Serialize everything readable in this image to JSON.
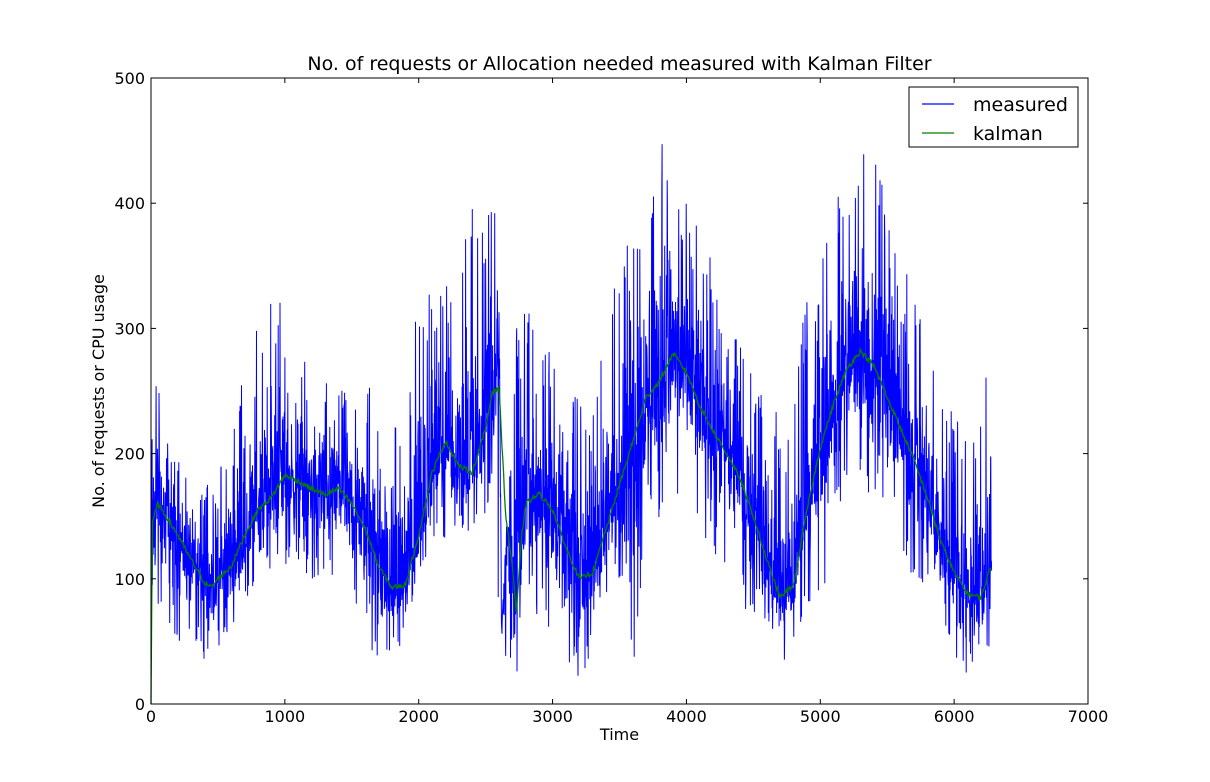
{
  "chart_data": {
    "type": "line",
    "title": "No. of requests or Allocation needed measured with Kalman Filter",
    "xlabel": "Time",
    "ylabel": "No. of requests or CPU usage",
    "xlim": [
      0,
      7000
    ],
    "ylim": [
      0,
      500
    ],
    "xticks": [
      0,
      1000,
      2000,
      3000,
      4000,
      5000,
      6000,
      7000
    ],
    "yticks": [
      0,
      100,
      200,
      300,
      400,
      500
    ],
    "grid": false,
    "legend_position": "top-right",
    "x_max_data": 6280,
    "series": [
      {
        "name": "measured",
        "color": "#0000ff",
        "description": "noisy measured signal, sampled each time step; envelope (x, low, high)",
        "envelope": [
          [
            0,
            90,
            300
          ],
          [
            100,
            60,
            230
          ],
          [
            200,
            50,
            200
          ],
          [
            300,
            45,
            180
          ],
          [
            400,
            30,
            170
          ],
          [
            500,
            45,
            200
          ],
          [
            600,
            60,
            230
          ],
          [
            700,
            80,
            290
          ],
          [
            800,
            95,
            300
          ],
          [
            900,
            110,
            350
          ],
          [
            1000,
            110,
            310
          ],
          [
            1100,
            100,
            280
          ],
          [
            1200,
            100,
            270
          ],
          [
            1300,
            100,
            290
          ],
          [
            1400,
            90,
            260
          ],
          [
            1500,
            80,
            250
          ],
          [
            1600,
            50,
            250
          ],
          [
            1700,
            30,
            260
          ],
          [
            1800,
            35,
            230
          ],
          [
            1900,
            50,
            240
          ],
          [
            2000,
            100,
            360
          ],
          [
            2100,
            130,
            320
          ],
          [
            2200,
            130,
            340
          ],
          [
            2300,
            130,
            370
          ],
          [
            2400,
            140,
            400
          ],
          [
            2500,
            150,
            400
          ],
          [
            2560,
            160,
            410
          ],
          [
            2600,
            0,
            330
          ],
          [
            2620,
            40,
            60
          ],
          [
            2730,
            0,
            310
          ],
          [
            2800,
            80,
            320
          ],
          [
            2900,
            70,
            300
          ],
          [
            3000,
            50,
            280
          ],
          [
            3100,
            30,
            260
          ],
          [
            3200,
            20,
            250
          ],
          [
            3300,
            40,
            280
          ],
          [
            3400,
            70,
            320
          ],
          [
            3500,
            100,
            350
          ],
          [
            3600,
            0,
            390
          ],
          [
            3700,
            150,
            420
          ],
          [
            3800,
            140,
            450
          ],
          [
            3900,
            160,
            440
          ],
          [
            4000,
            150,
            400
          ],
          [
            4100,
            140,
            380
          ],
          [
            4200,
            120,
            350
          ],
          [
            4300,
            100,
            310
          ],
          [
            4400,
            80,
            290
          ],
          [
            4500,
            60,
            270
          ],
          [
            4600,
            30,
            250
          ],
          [
            4700,
            15,
            230
          ],
          [
            4800,
            45,
            250
          ],
          [
            4900,
            80,
            330
          ],
          [
            5000,
            70,
            370
          ],
          [
            5100,
            140,
            400
          ],
          [
            5200,
            160,
            430
          ],
          [
            5300,
            160,
            450
          ],
          [
            5400,
            150,
            440
          ],
          [
            5500,
            130,
            400
          ],
          [
            5600,
            120,
            360
          ],
          [
            5700,
            100,
            330
          ],
          [
            5800,
            80,
            300
          ],
          [
            5900,
            50,
            260
          ],
          [
            6000,
            40,
            230
          ],
          [
            6100,
            20,
            220
          ],
          [
            6200,
            40,
            230
          ],
          [
            6280,
            0,
            300
          ]
        ]
      },
      {
        "name": "kalman",
        "color": "#008000",
        "points": [
          [
            0,
            0
          ],
          [
            10,
            145
          ],
          [
            50,
            160
          ],
          [
            100,
            152
          ],
          [
            200,
            135
          ],
          [
            300,
            115
          ],
          [
            400,
            97
          ],
          [
            450,
            93
          ],
          [
            500,
            100
          ],
          [
            600,
            110
          ],
          [
            700,
            135
          ],
          [
            800,
            155
          ],
          [
            900,
            165
          ],
          [
            1000,
            183
          ],
          [
            1100,
            178
          ],
          [
            1200,
            172
          ],
          [
            1300,
            167
          ],
          [
            1400,
            172
          ],
          [
            1500,
            160
          ],
          [
            1600,
            140
          ],
          [
            1700,
            110
          ],
          [
            1800,
            93
          ],
          [
            1900,
            95
          ],
          [
            2000,
            135
          ],
          [
            2100,
            185
          ],
          [
            2200,
            210
          ],
          [
            2300,
            190
          ],
          [
            2400,
            185
          ],
          [
            2500,
            220
          ],
          [
            2550,
            250
          ],
          [
            2600,
            252
          ],
          [
            2650,
            150
          ],
          [
            2700,
            110
          ],
          [
            2730,
            72
          ],
          [
            2770,
            135
          ],
          [
            2800,
            160
          ],
          [
            2900,
            168
          ],
          [
            3000,
            155
          ],
          [
            3100,
            125
          ],
          [
            3200,
            100
          ],
          [
            3300,
            105
          ],
          [
            3400,
            140
          ],
          [
            3500,
            175
          ],
          [
            3600,
            210
          ],
          [
            3700,
            245
          ],
          [
            3800,
            258
          ],
          [
            3900,
            280
          ],
          [
            4000,
            265
          ],
          [
            4100,
            238
          ],
          [
            4200,
            218
          ],
          [
            4300,
            200
          ],
          [
            4400,
            180
          ],
          [
            4500,
            150
          ],
          [
            4600,
            115
          ],
          [
            4700,
            85
          ],
          [
            4800,
            95
          ],
          [
            4900,
            155
          ],
          [
            5000,
            205
          ],
          [
            5100,
            240
          ],
          [
            5200,
            268
          ],
          [
            5300,
            282
          ],
          [
            5400,
            270
          ],
          [
            5500,
            245
          ],
          [
            5600,
            220
          ],
          [
            5700,
            195
          ],
          [
            5800,
            165
          ],
          [
            5900,
            130
          ],
          [
            6000,
            105
          ],
          [
            6100,
            88
          ],
          [
            6200,
            85
          ],
          [
            6280,
            112
          ]
        ]
      }
    ]
  }
}
